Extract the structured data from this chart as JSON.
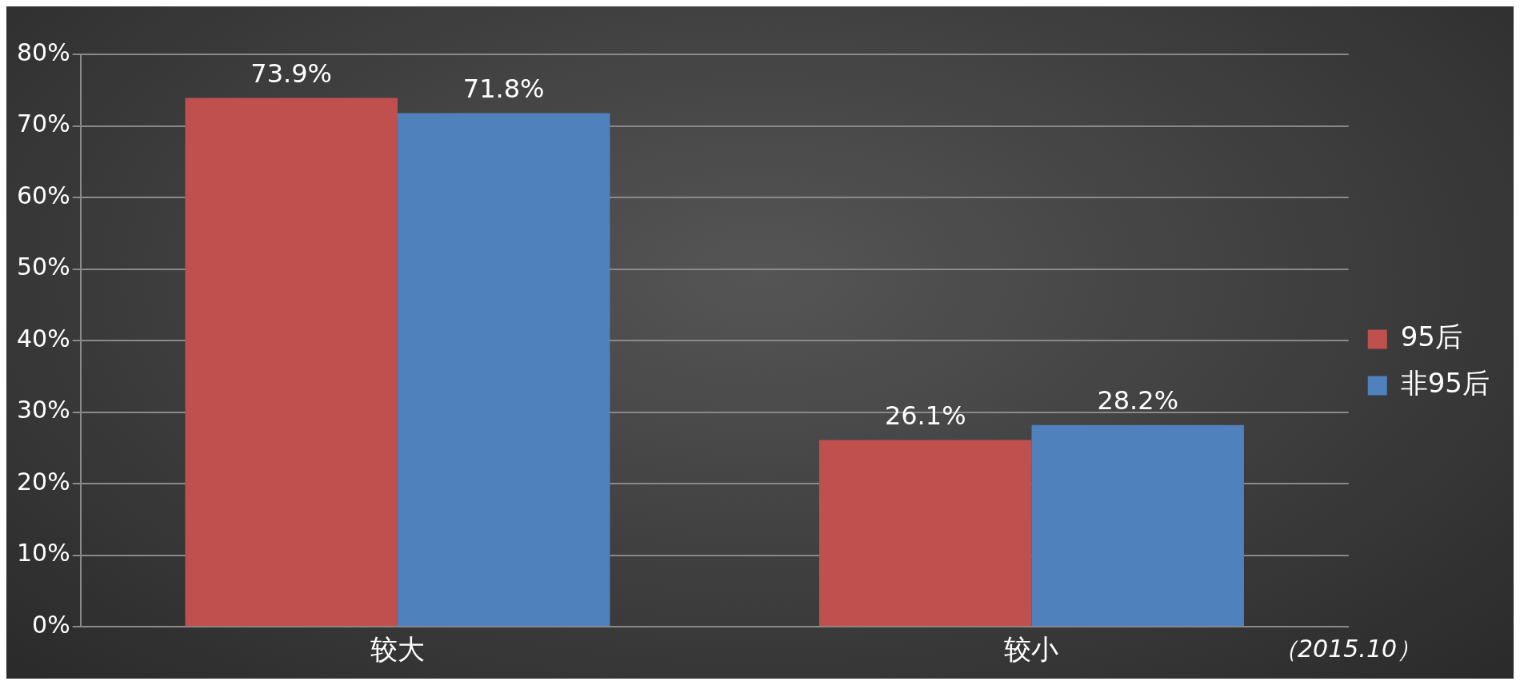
{
  "chart_data": {
    "type": "bar",
    "categories": [
      "较大",
      "较小"
    ],
    "series": [
      {
        "name": "95后",
        "color": "#c0504d",
        "values": [
          73.9,
          26.1
        ],
        "value_labels": [
          "73.9%",
          "26.1%"
        ]
      },
      {
        "name": "非95后",
        "color": "#4f81bd",
        "values": [
          71.8,
          28.2
        ],
        "value_labels": [
          "71.8%",
          "28.2%"
        ]
      }
    ],
    "ylim": [
      0,
      80
    ],
    "yticks": [
      {
        "value": 0,
        "label": "0%"
      },
      {
        "value": 10,
        "label": "10%"
      },
      {
        "value": 20,
        "label": "20%"
      },
      {
        "value": 30,
        "label": "30%"
      },
      {
        "value": 40,
        "label": "40%"
      },
      {
        "value": 50,
        "label": "50%"
      },
      {
        "value": 60,
        "label": "60%"
      },
      {
        "value": 70,
        "label": "70%"
      },
      {
        "value": 80,
        "label": "80%"
      }
    ],
    "grid": "y",
    "legend": "right",
    "annotations": [
      "（2015.10）"
    ]
  }
}
